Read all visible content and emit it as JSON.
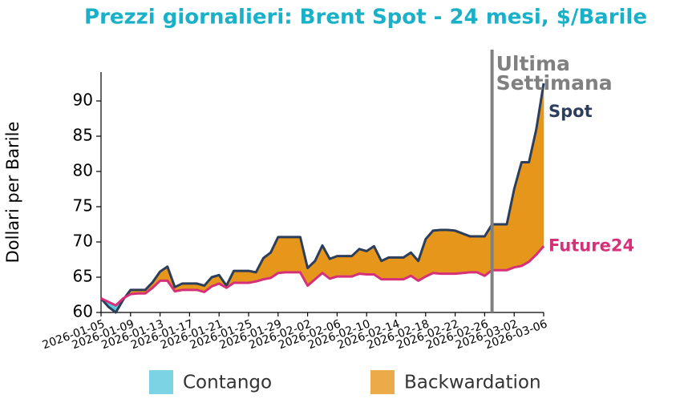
{
  "chart_data": {
    "type": "line",
    "title": "Prezzi giornalieri: Brent Spot - 24 mesi, $/Barile",
    "y_label": "Dollari per Barile",
    "x": [
      "2026-01-05",
      "2026-01-06",
      "2026-01-07",
      "2026-01-08",
      "2026-01-09",
      "2026-01-10",
      "2026-01-11",
      "2026-01-12",
      "2026-01-13",
      "2026-01-14",
      "2026-01-15",
      "2026-01-16",
      "2026-01-17",
      "2026-01-18",
      "2026-01-19",
      "2026-01-20",
      "2026-01-21",
      "2026-01-22",
      "2026-01-23",
      "2026-01-24",
      "2026-01-25",
      "2026-01-26",
      "2026-01-27",
      "2026-01-28",
      "2026-01-29",
      "2026-01-30",
      "2026-01-31",
      "2026-02-01",
      "2026-02-02",
      "2026-02-03",
      "2026-02-04",
      "2026-02-05",
      "2026-02-06",
      "2026-02-07",
      "2026-02-08",
      "2026-02-09",
      "2026-02-10",
      "2026-02-11",
      "2026-02-12",
      "2026-02-13",
      "2026-02-14",
      "2026-02-15",
      "2026-02-16",
      "2026-02-17",
      "2026-02-18",
      "2026-02-19",
      "2026-02-20",
      "2026-02-21",
      "2026-02-22",
      "2026-02-23",
      "2026-02-24",
      "2026-02-25",
      "2026-02-26",
      "2026-02-27",
      "2026-02-28",
      "2026-03-01",
      "2026-03-02",
      "2026-03-03",
      "2026-03-04",
      "2026-03-05",
      "2026-03-06"
    ],
    "series": [
      {
        "name": "Spot",
        "color": "#2c3e5c",
        "values": [
          62.0,
          60.8,
          60.0,
          61.8,
          63.2,
          63.2,
          63.2,
          64.3,
          65.8,
          66.5,
          63.6,
          64.1,
          64.1,
          64.1,
          63.8,
          65.0,
          65.3,
          63.8,
          65.9,
          65.9,
          65.9,
          65.7,
          67.7,
          68.5,
          70.7,
          70.7,
          70.7,
          70.7,
          66.3,
          67.3,
          69.5,
          67.6,
          68.0,
          68.0,
          68.0,
          69.0,
          68.7,
          69.4,
          67.3,
          67.8,
          67.8,
          67.8,
          68.5,
          67.3,
          70.4,
          71.6,
          71.7,
          71.7,
          71.6,
          71.2,
          70.8,
          70.8,
          70.8,
          72.5,
          72.5,
          72.5,
          77.5,
          81.3,
          81.3,
          86.0,
          92.5
        ]
      },
      {
        "name": "Future24",
        "color": "#d6307a",
        "values": [
          62.0,
          61.5,
          61.0,
          62.0,
          62.6,
          62.7,
          62.7,
          63.5,
          64.5,
          64.5,
          63.0,
          63.2,
          63.2,
          63.2,
          62.9,
          63.7,
          64.1,
          63.5,
          64.2,
          64.2,
          64.2,
          64.4,
          64.7,
          64.9,
          65.6,
          65.7,
          65.7,
          65.7,
          63.8,
          64.7,
          65.6,
          64.8,
          65.1,
          65.1,
          65.1,
          65.5,
          65.4,
          65.4,
          64.7,
          64.7,
          64.7,
          64.7,
          65.2,
          64.5,
          65.1,
          65.6,
          65.5,
          65.5,
          65.5,
          65.6,
          65.7,
          65.7,
          65.2,
          66.0,
          66.0,
          66.0,
          66.4,
          66.6,
          67.2,
          68.2,
          69.4
        ]
      }
    ],
    "fills": [
      {
        "name": "Contango",
        "color": "#5bc8dc"
      },
      {
        "name": "Backwardation",
        "color": "#e6961a"
      }
    ],
    "xlim": [
      "2026-01-05",
      "2026-03-06"
    ],
    "xticks": [
      "2026-01-05",
      "2026-01-09",
      "2026-01-13",
      "2026-01-17",
      "2026-01-21",
      "2026-01-25",
      "2026-01-29",
      "2026-02-02",
      "2026-02-06",
      "2026-02-10",
      "2026-02-14",
      "2026-02-18",
      "2026-02-22",
      "2026-02-26",
      "2026-03-02",
      "2026-03-06"
    ],
    "ylim": [
      60,
      94
    ],
    "yticks": [
      60,
      65,
      70,
      75,
      80,
      85,
      90
    ],
    "marker_line": {
      "x": "2026-02-27",
      "label": [
        "Ultima",
        "Settimana"
      ],
      "color": "#808080"
    }
  }
}
